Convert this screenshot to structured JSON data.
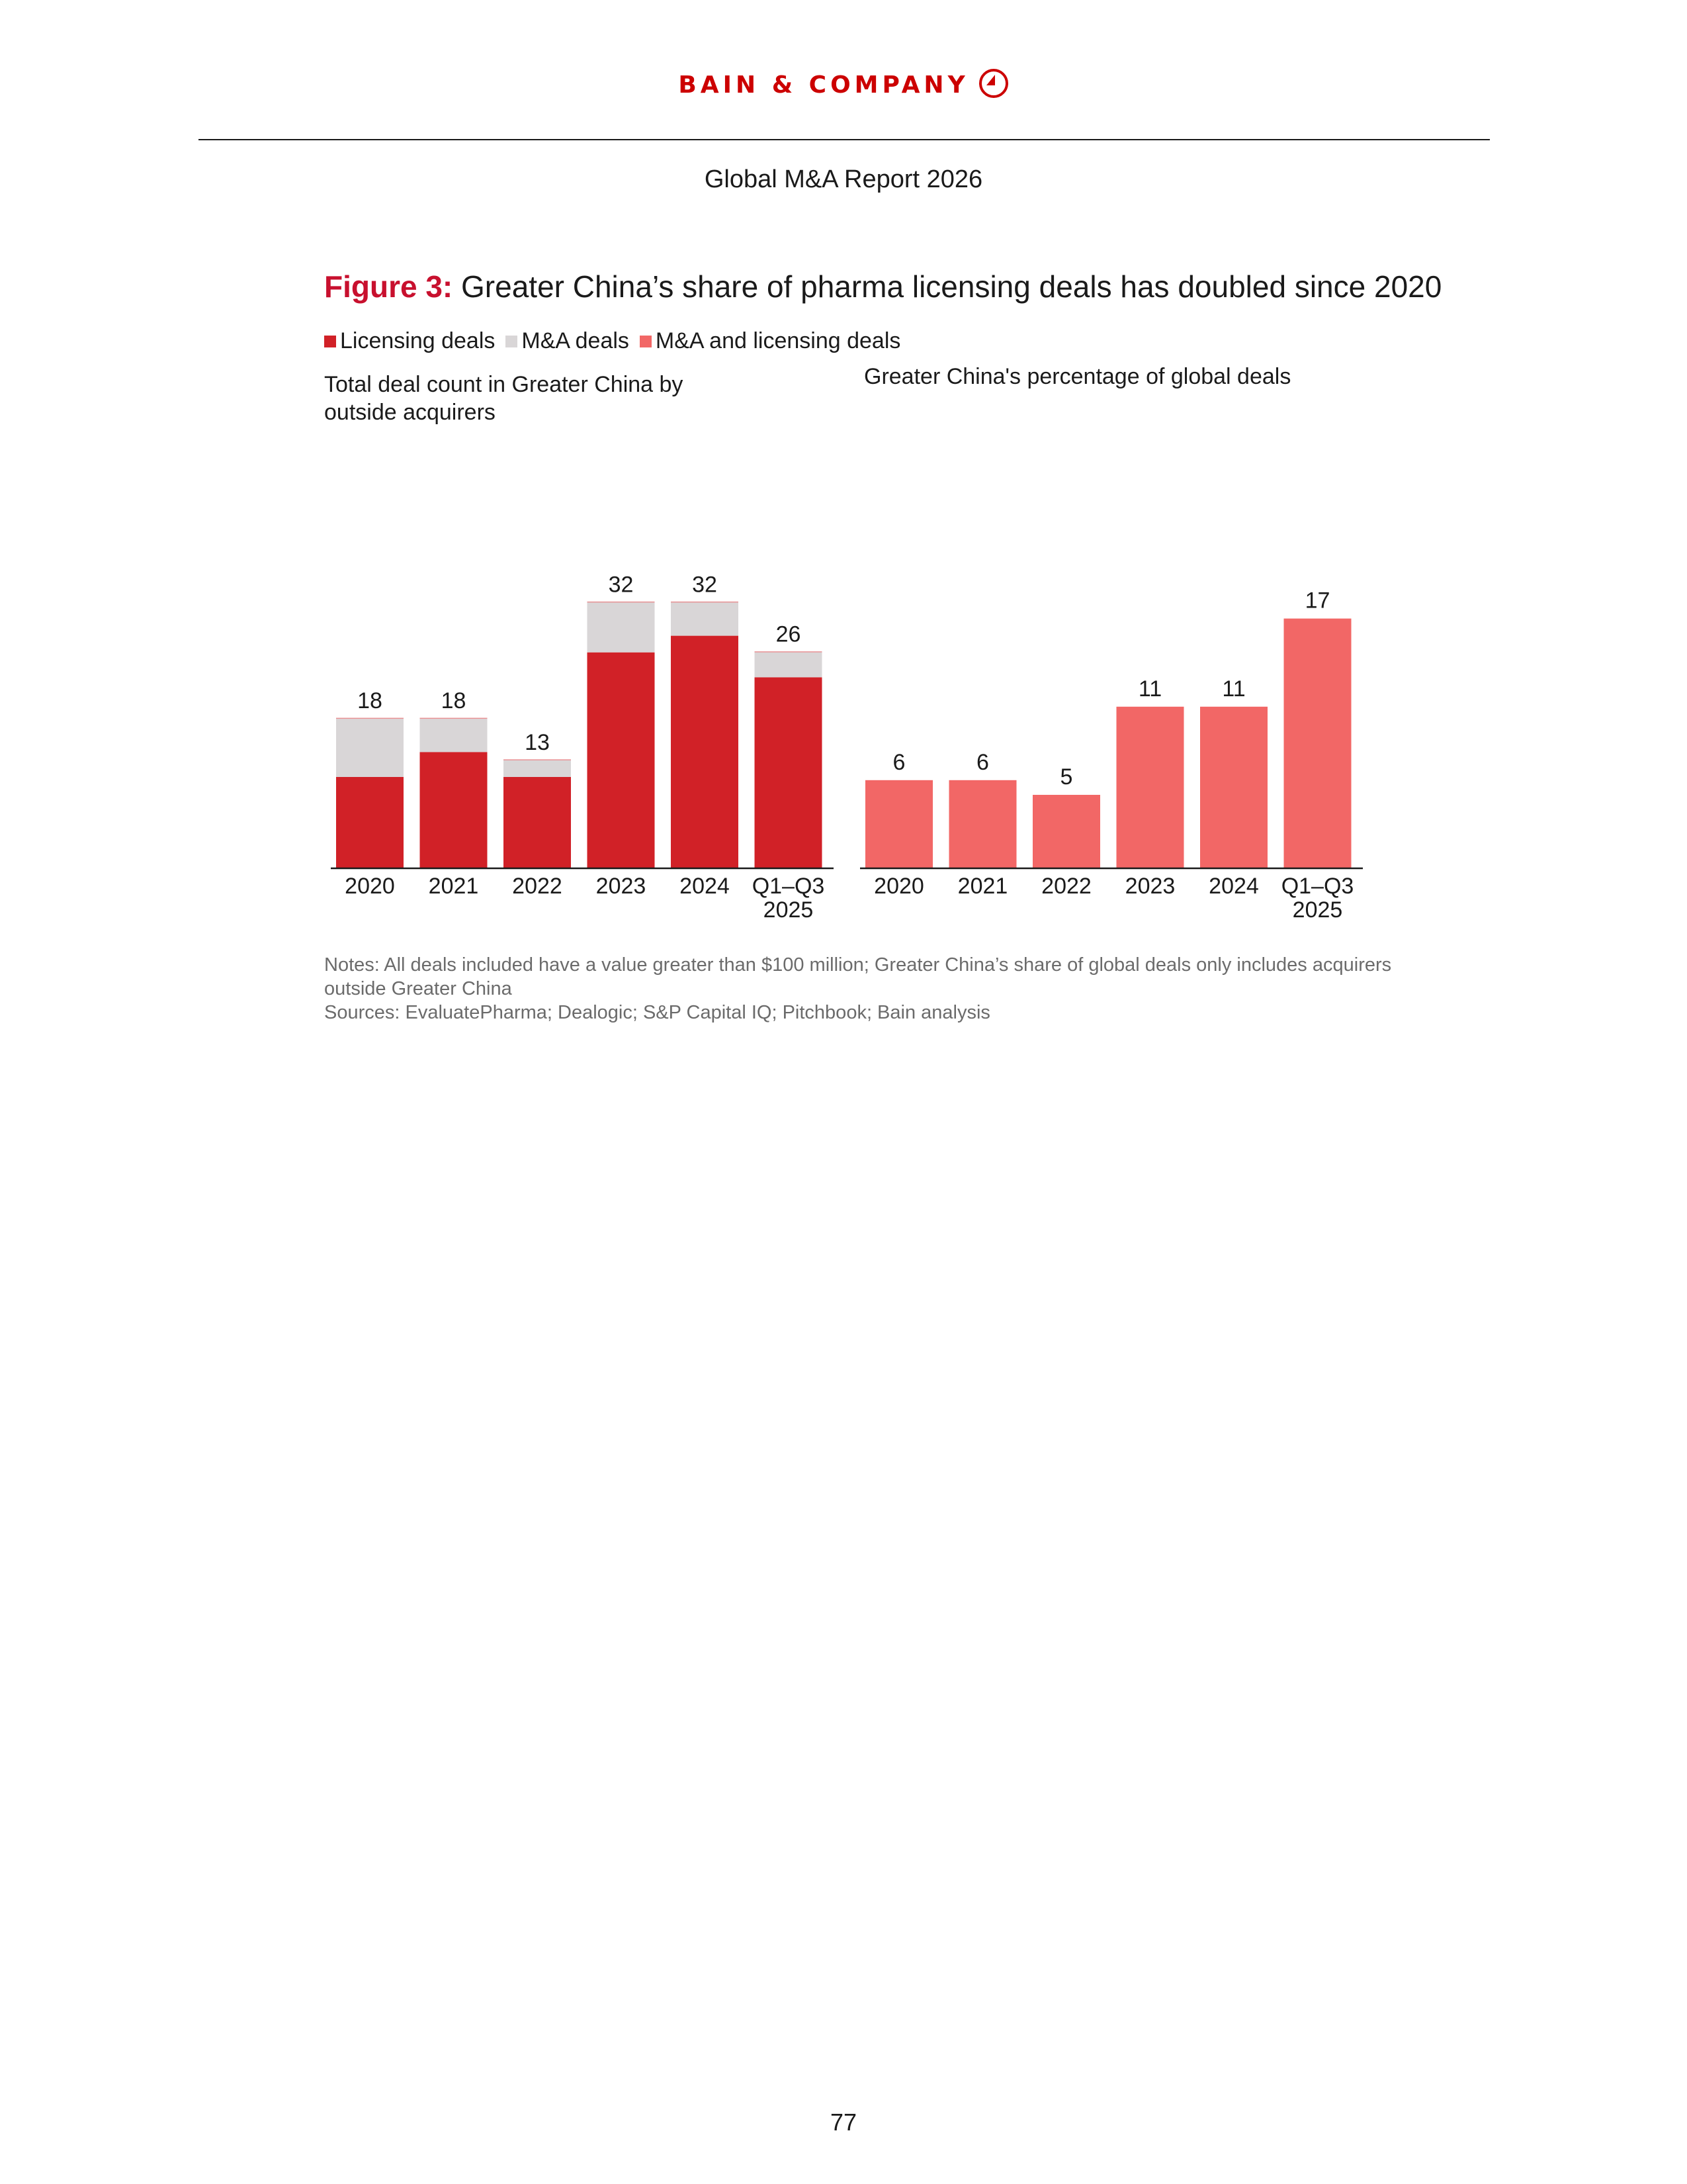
{
  "header": {
    "brand": "BAIN & COMPANY",
    "report_title": "Global M&A Report 2026"
  },
  "figure": {
    "label": "Figure 3:",
    "title": "Greater China’s share of pharma licensing deals has doubled since 2020"
  },
  "legend": [
    {
      "label": "Licensing deals",
      "color": "#d12127"
    },
    {
      "label": "M&A deals",
      "color": "#d9d6d7"
    },
    {
      "label": "M&A and licensing deals",
      "color": "#f26766"
    }
  ],
  "chart_data": [
    {
      "type": "bar",
      "stacked": true,
      "title": "Total deal count in Greater China by outside acquirers",
      "categories": [
        "2020",
        "2021",
        "2022",
        "2023",
        "2024",
        "Q1–Q3 2025"
      ],
      "series": [
        {
          "name": "Licensing deals",
          "color": "#d12127",
          "values": [
            11,
            14,
            11,
            26,
            28,
            23
          ]
        },
        {
          "name": "M&A deals",
          "color": "#d9d6d7",
          "values": [
            7,
            4,
            2,
            6,
            4,
            3
          ]
        }
      ],
      "totals": [
        "18",
        "18",
        "13",
        "32",
        "32",
        "26"
      ],
      "ylim": [
        0,
        32
      ]
    },
    {
      "type": "bar",
      "title": "Greater China's percentage of global deals",
      "categories": [
        "2020",
        "2021",
        "2022",
        "2023",
        "2024",
        "Q1–Q3 2025"
      ],
      "series": [
        {
          "name": "M&A and licensing deals",
          "color": "#f26766",
          "values": [
            6,
            6,
            5,
            11,
            11,
            17
          ]
        }
      ],
      "value_labels": [
        "6",
        "6",
        "5",
        "11",
        "11",
        "17"
      ],
      "ylim": [
        0,
        17
      ]
    }
  ],
  "notes": {
    "notes_text": "Notes: All deals included have a value greater than $100 million; Greater China’s share of global deals only includes acquirers outside Greater China",
    "sources_text": "Sources: EvaluatePharma; Dealogic; S&P Capital IQ; Pitchbook; Bain analysis"
  },
  "page_number": "77"
}
